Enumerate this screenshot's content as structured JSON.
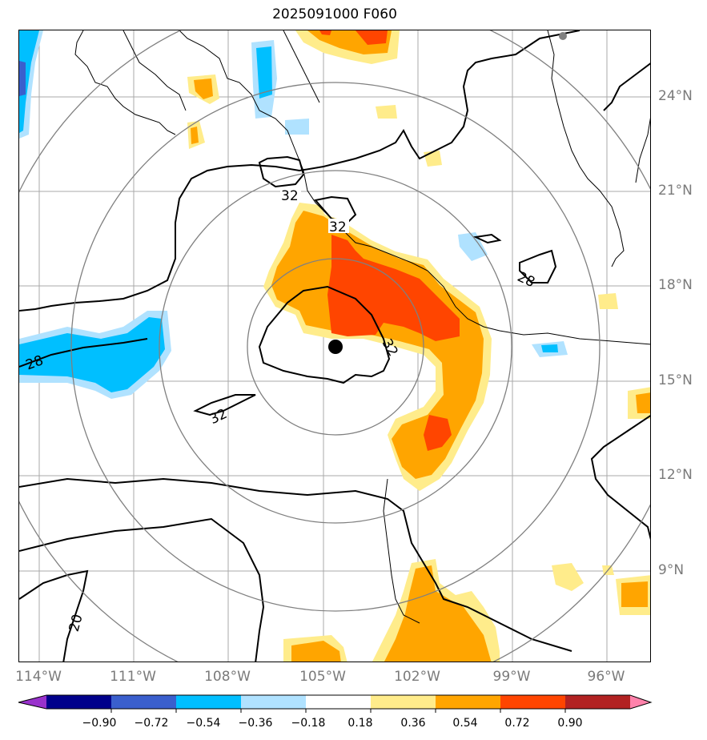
{
  "title": "2025091000 F060",
  "lon_labels": [
    "114°W",
    "111°W",
    "108°W",
    "105°W",
    "102°W",
    "99°W",
    "96°W"
  ],
  "lat_labels": [
    "24°N",
    "21°N",
    "18°N",
    "15°N",
    "12°N",
    "9°N"
  ],
  "contour_labels": [
    "32",
    "32",
    "28",
    "32",
    "32",
    "28",
    "20"
  ],
  "colorbar": {
    "ticks": [
      "−0.90",
      "−0.72",
      "−0.54",
      "−0.36",
      "−0.18",
      "0.18",
      "0.36",
      "0.54",
      "0.72",
      "0.90"
    ],
    "colors": [
      "#9932cc",
      "#00008b",
      "#3a5fcd",
      "#00bfff",
      "#b0e2ff",
      "#ffffff",
      "#ffec8b",
      "#ffa500",
      "#ff4500",
      "#b22222",
      "#ff82ab"
    ]
  },
  "colors": {
    "fill_light_yellow": "#ffec8b",
    "fill_orange": "#ffa500",
    "fill_red_orange": "#ff4500",
    "fill_light_blue": "#b0e2ff",
    "fill_blue": "#00bfff",
    "fill_medium_blue": "#3a5fcd",
    "grid": "#a0a0a0",
    "range_ring": "#808080",
    "contour": "#000000",
    "center_marker": "#000000"
  },
  "icons": {
    "storm_center": "storm-center-dot",
    "station": "station-dot"
  }
}
